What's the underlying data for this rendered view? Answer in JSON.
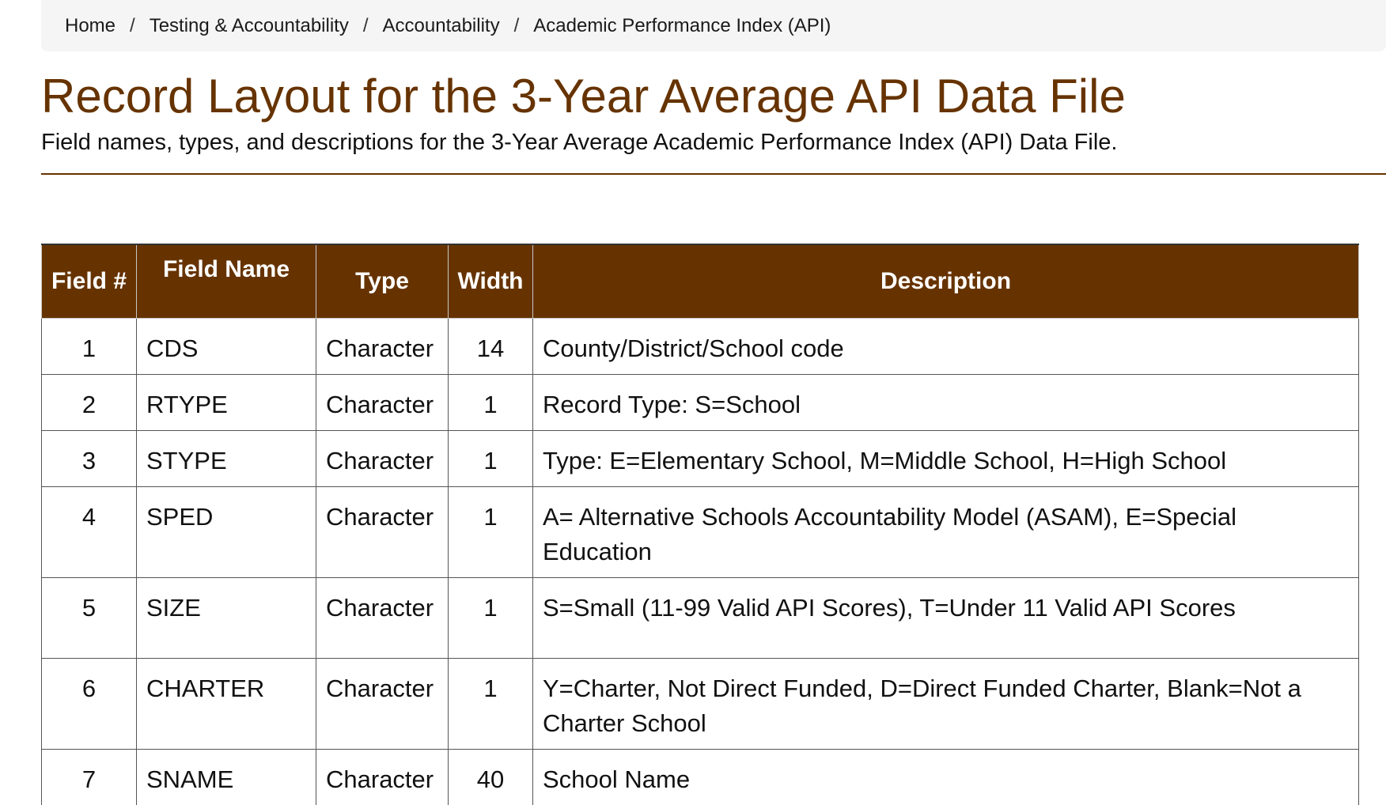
{
  "breadcrumb": [
    "Home",
    "Testing & Accountability",
    "Accountability",
    "Academic Performance Index (API)"
  ],
  "breadcrumb_separator": "/",
  "title": "Record Layout for the 3-Year Average API Data File",
  "subtitle": "Field names, types, and descriptions for the 3-Year Average Academic Performance Index (API) Data File.",
  "colors": {
    "accent": "#663300",
    "breadcrumb_bg": "#f5f5f5"
  },
  "table": {
    "headers": {
      "field_num": "Field #",
      "field_name": "Field Name",
      "type": "Type",
      "width": "Width",
      "description": "Description"
    },
    "rows": [
      {
        "num": "1",
        "name": "CDS",
        "type": "Character",
        "width": "14",
        "description": "County/District/School code"
      },
      {
        "num": "2",
        "name": "RTYPE",
        "type": "Character",
        "width": "1",
        "description": "Record Type: S=School"
      },
      {
        "num": "3",
        "name": "STYPE",
        "type": "Character",
        "width": "1",
        "description": "Type: E=Elementary School, M=Middle School, H=High School"
      },
      {
        "num": "4",
        "name": "SPED",
        "type": "Character",
        "width": "1",
        "description": "A= Alternative Schools Accountability Model (ASAM), E=Special Education"
      },
      {
        "num": "5",
        "name": "SIZE",
        "type": "Character",
        "width": "1",
        "description": "S=Small (11-99 Valid API Scores), T=Under 11 Valid API Scores"
      },
      {
        "num": "6",
        "name": "CHARTER",
        "type": "Character",
        "width": "1",
        "description": "Y=Charter, Not Direct Funded, D=Direct Funded Charter, Blank=Not a Charter School"
      },
      {
        "num": "7",
        "name": "SNAME",
        "type": "Character",
        "width": "40",
        "description": "School Name"
      }
    ]
  }
}
